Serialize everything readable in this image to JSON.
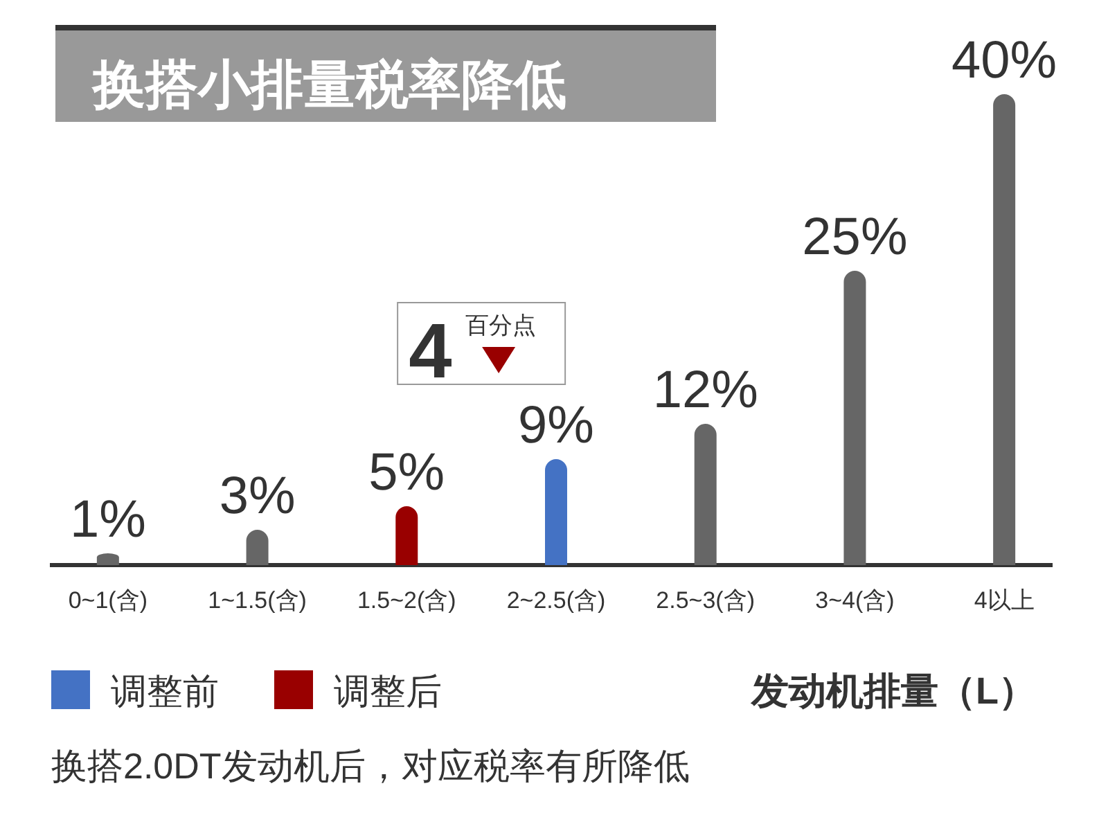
{
  "chart_data": {
    "type": "bar",
    "title": "换搭小排量税率降低",
    "xlabel": "发动机排量（L）",
    "categories": [
      "0~1(含)",
      "1~1.5(含)",
      "1.5~2(含)",
      "2~2.5(含)",
      "2.5~3(含)",
      "3~4(含)",
      "4以上"
    ],
    "stacked": true,
    "series": [
      {
        "color": "#666666",
        "values": [
          1,
          3,
          null,
          null,
          12,
          25,
          40
        ],
        "value_labels": [
          "1%",
          "3%",
          null,
          null,
          "12%",
          "25%",
          "40%"
        ]
      },
      {
        "name": "调整前",
        "color": "#4472c4",
        "values": [
          null,
          null,
          null,
          9,
          null,
          null,
          null
        ],
        "value_labels": [
          null,
          null,
          null,
          "9%",
          null,
          null,
          null
        ]
      },
      {
        "name": "调整后",
        "color": "#990000",
        "values": [
          null,
          null,
          5,
          null,
          null,
          null,
          null
        ],
        "value_labels": [
          null,
          null,
          "5%",
          null,
          null,
          null,
          null
        ]
      }
    ],
    "legend": "bottom left",
    "annotations": [
      "4百分点",
      "换搭2.0DT发动机后，对应税率有所降低"
    ]
  }
}
